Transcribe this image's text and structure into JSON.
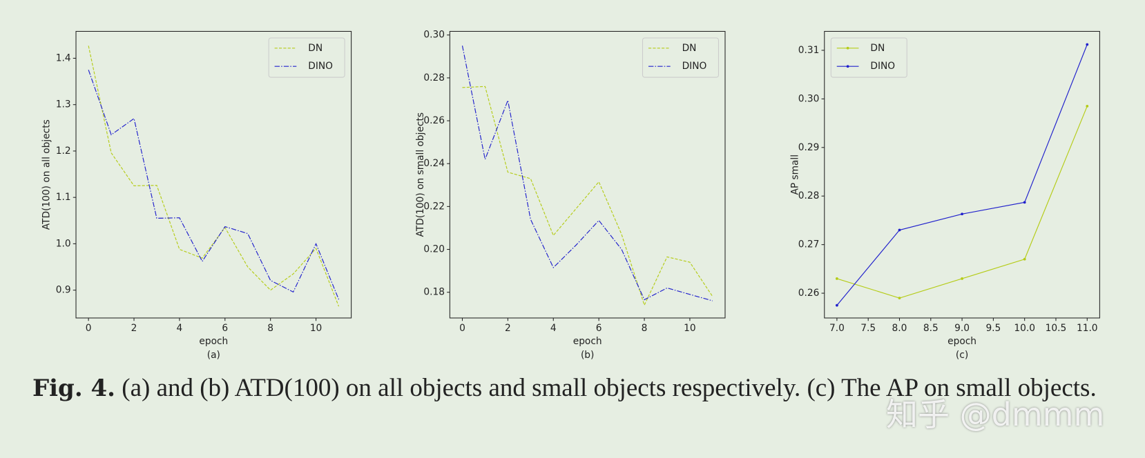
{
  "chart_data": [
    {
      "type": "line",
      "xlabel": "epoch",
      "sublabel": "(a)",
      "ylabel": "ATD(100) on all objects",
      "x": [
        0,
        1,
        2,
        3,
        4,
        5,
        6,
        7,
        8,
        9,
        10,
        11
      ],
      "xlim": [
        -0.55,
        11.55
      ],
      "xticks": [
        0,
        2,
        4,
        6,
        8,
        10
      ],
      "ylim": [
        0.84,
        1.458
      ],
      "yticks": [
        0.9,
        {
          "value": 1,
          "label": "1.0"
        },
        1.1,
        1.2,
        1.3,
        1.4
      ],
      "legend": "upper right",
      "markers": false,
      "series": [
        {
          "name": "DN",
          "color": "#b5cc18",
          "linestyle": "dashed",
          "values": [
            1.427,
            1.196,
            1.125,
            1.126,
            0.988,
            0.969,
            1.035,
            0.95,
            0.9,
            0.935,
            0.99,
            0.865
          ]
        },
        {
          "name": "DINO",
          "color": "#2020cc",
          "linestyle": "dashdot",
          "values": [
            1.375,
            1.235,
            1.27,
            1.055,
            1.056,
            0.962,
            1.037,
            1.022,
            0.921,
            0.896,
            1.0,
            0.88
          ]
        }
      ]
    },
    {
      "type": "line",
      "xlabel": "epoch",
      "sublabel": "(b)",
      "ylabel": "ATD(100) on small objects",
      "x": [
        0,
        1,
        2,
        3,
        4,
        5,
        6,
        7,
        8,
        9,
        10,
        11
      ],
      "xlim": [
        -0.55,
        11.55
      ],
      "xticks": [
        0,
        2,
        4,
        6,
        8,
        10
      ],
      "ylim": [
        0.168,
        0.3017
      ],
      "yticks": [
        0.18,
        {
          "value": 0.2,
          "label": "0.20"
        },
        0.22,
        0.24,
        0.26,
        0.28,
        {
          "value": 0.3,
          "label": "0.30"
        }
      ],
      "legend": "upper right",
      "markers": false,
      "series": [
        {
          "name": "DN",
          "color": "#b5cc18",
          "linestyle": "dashed",
          "values": [
            0.2755,
            0.276,
            0.236,
            0.233,
            0.2065,
            0.219,
            0.2315,
            0.207,
            0.174,
            0.1965,
            0.194,
            0.178
          ]
        },
        {
          "name": "DINO",
          "color": "#2020cc",
          "linestyle": "dashdot",
          "values": [
            0.295,
            0.242,
            0.2695,
            0.214,
            0.1915,
            0.202,
            0.2135,
            0.2,
            0.1765,
            0.182,
            0.179,
            0.176
          ]
        }
      ]
    },
    {
      "type": "line",
      "xlabel": "epoch",
      "sublabel": "(c)",
      "ylabel": "AP small",
      "x": [
        7,
        8,
        9,
        10,
        11
      ],
      "xlim": [
        6.8,
        11.2
      ],
      "xticks": [
        {
          "value": 7,
          "label": "7.0"
        },
        7.5,
        {
          "value": 8,
          "label": "8.0"
        },
        8.5,
        {
          "value": 9,
          "label": "9.0"
        },
        9.5,
        {
          "value": 10,
          "label": "10.0"
        },
        10.5,
        {
          "value": 11,
          "label": "11.0"
        }
      ],
      "ylim": [
        0.2549,
        0.3139
      ],
      "yticks": [
        0.26,
        0.27,
        0.28,
        0.29,
        {
          "value": 0.3,
          "label": "0.30"
        },
        0.31
      ],
      "legend": "upper left",
      "markers": true,
      "series": [
        {
          "name": "DN",
          "color": "#b5cc18",
          "linestyle": "solid",
          "values": [
            0.263,
            0.259,
            0.263,
            0.267,
            0.2985
          ]
        },
        {
          "name": "DINO",
          "color": "#2020cc",
          "linestyle": "solid",
          "values": [
            0.2575,
            0.273,
            0.2763,
            0.2787,
            0.3112
          ]
        }
      ]
    }
  ],
  "caption": {
    "label": "Fig. 4.",
    "text": "(a) and (b) ATD(100) on all objects and small objects respectively. (c) The AP on small objects."
  },
  "watermark": "知乎 @dmmm"
}
